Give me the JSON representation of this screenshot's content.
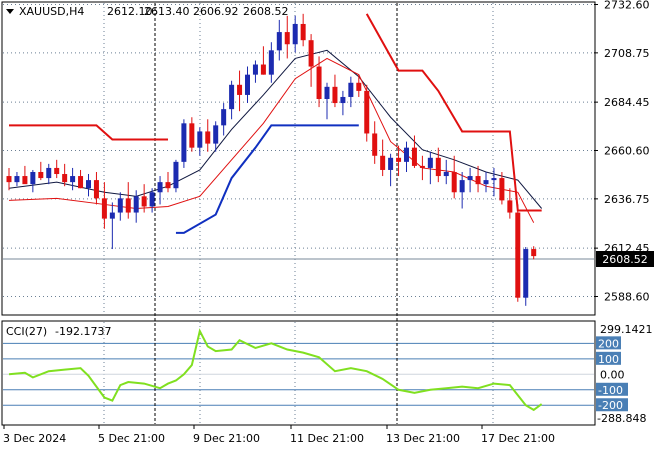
{
  "main": {
    "symbol": "XAUUSD,H4",
    "ohlc": [
      "2612.10",
      "2613.40",
      "2606.92",
      "2608.52"
    ],
    "price_ticks": [
      "2732.60",
      "2708.75",
      "2684.45",
      "2660.60",
      "2636.75",
      "2612.45",
      "2588.60"
    ],
    "current_price": "2608.52"
  },
  "cci": {
    "label": "CCI(27)",
    "value": "-192.1737",
    "axis_top": "299.1421",
    "axis_bottom": "-288.848",
    "level_labels": [
      "200",
      "100",
      "0.00",
      "-100",
      "-200"
    ]
  },
  "time_labels": [
    "3 Dec 2024",
    "5 Dec 21:00",
    "9 Dec 21:00",
    "11 Dec 21:00",
    "13 Dec 21:00",
    "17 Dec 21:00"
  ],
  "colors": {
    "bull": "#1c2bb0",
    "bear": "#e01010",
    "envelope_red": "#e01010",
    "envelope_blue": "#1030c0",
    "cci_line": "#80e020",
    "level_fill": "#4a7fb5",
    "grid": "#6b7f94"
  },
  "chart_data": {
    "type": "candlestick",
    "symbol": "XAUUSD",
    "timeframe": "H4",
    "y_range": [
      2576,
      2738
    ],
    "candles": [
      [
        2648,
        2652,
        2641,
        2645
      ],
      [
        2645,
        2650,
        2643,
        2648
      ],
      [
        2648,
        2653,
        2645,
        2644
      ],
      [
        2644,
        2651,
        2640,
        2650
      ],
      [
        2650,
        2655,
        2646,
        2647
      ],
      [
        2647,
        2654,
        2644,
        2652
      ],
      [
        2652,
        2656,
        2647,
        2649
      ],
      [
        2649,
        2654,
        2643,
        2645
      ],
      [
        2645,
        2652,
        2641,
        2648
      ],
      [
        2648,
        2651,
        2642,
        2642
      ],
      [
        2642,
        2649,
        2638,
        2646
      ],
      [
        2646,
        2650,
        2634,
        2637
      ],
      [
        2637,
        2645,
        2622,
        2627
      ],
      [
        2627,
        2635,
        2612,
        2630
      ],
      [
        2630,
        2640,
        2626,
        2637
      ],
      [
        2637,
        2645,
        2627,
        2630
      ],
      [
        2630,
        2641,
        2625,
        2638
      ],
      [
        2638,
        2644,
        2630,
        2633
      ],
      [
        2633,
        2642,
        2630,
        2640
      ],
      [
        2640,
        2648,
        2634,
        2645
      ],
      [
        2645,
        2650,
        2640,
        2642
      ],
      [
        2642,
        2656,
        2640,
        2655
      ],
      [
        2655,
        2676,
        2652,
        2674
      ],
      [
        2674,
        2677,
        2660,
        2662
      ],
      [
        2662,
        2672,
        2658,
        2670
      ],
      [
        2670,
        2676,
        2660,
        2664
      ],
      [
        2664,
        2675,
        2660,
        2673
      ],
      [
        2673,
        2684,
        2668,
        2681
      ],
      [
        2681,
        2695,
        2676,
        2693
      ],
      [
        2693,
        2700,
        2680,
        2688
      ],
      [
        2688,
        2702,
        2684,
        2698
      ],
      [
        2698,
        2705,
        2694,
        2703
      ],
      [
        2703,
        2712,
        2698,
        2698
      ],
      [
        2698,
        2714,
        2694,
        2710
      ],
      [
        2710,
        2725,
        2705,
        2719
      ],
      [
        2719,
        2727,
        2706,
        2713
      ],
      [
        2713,
        2727,
        2709,
        2723
      ],
      [
        2723,
        2728,
        2712,
        2715
      ],
      [
        2715,
        2718,
        2692,
        2702
      ],
      [
        2702,
        2707,
        2682,
        2686
      ],
      [
        2686,
        2694,
        2676,
        2692
      ],
      [
        2692,
        2698,
        2682,
        2684
      ],
      [
        2684,
        2690,
        2678,
        2687
      ],
      [
        2687,
        2697,
        2682,
        2694
      ],
      [
        2694,
        2698,
        2687,
        2690
      ],
      [
        2690,
        2693,
        2665,
        2669
      ],
      [
        2669,
        2675,
        2654,
        2658
      ],
      [
        2658,
        2666,
        2648,
        2651
      ],
      [
        2651,
        2659,
        2643,
        2657
      ],
      [
        2657,
        2663,
        2648,
        2655
      ],
      [
        2655,
        2665,
        2650,
        2662
      ],
      [
        2662,
        2668,
        2652,
        2653
      ],
      [
        2653,
        2658,
        2646,
        2652
      ],
      [
        2652,
        2660,
        2644,
        2657
      ],
      [
        2657,
        2662,
        2645,
        2648
      ],
      [
        2648,
        2656,
        2644,
        2650
      ],
      [
        2650,
        2658,
        2637,
        2640
      ],
      [
        2640,
        2650,
        2632,
        2646
      ],
      [
        2646,
        2652,
        2640,
        2648
      ],
      [
        2648,
        2653,
        2640,
        2644
      ],
      [
        2644,
        2650,
        2640,
        2646
      ],
      [
        2646,
        2652,
        2638,
        2647
      ],
      [
        2647,
        2650,
        2634,
        2636
      ],
      [
        2636,
        2642,
        2627,
        2630
      ],
      [
        2630,
        2634,
        2586,
        2588
      ],
      [
        2588,
        2613,
        2584,
        2612
      ],
      [
        2612,
        2613.4,
        2606.92,
        2608.52
      ]
    ],
    "envelope_lines": [
      [
        [
          0,
          2642
        ],
        [
          6,
          2645
        ],
        [
          12,
          2640
        ],
        [
          16,
          2638
        ],
        [
          20,
          2643
        ],
        [
          24,
          2651
        ],
        [
          28,
          2671
        ],
        [
          32,
          2688
        ],
        [
          36,
          2706
        ],
        [
          40,
          2710
        ],
        [
          44,
          2697
        ],
        [
          48,
          2677
        ],
        [
          52,
          2661
        ],
        [
          56,
          2656
        ],
        [
          60,
          2650
        ],
        [
          64,
          2646
        ],
        [
          67,
          2632
        ]
      ],
      [
        [
          0,
          2636
        ],
        [
          6,
          2637
        ],
        [
          12,
          2634
        ],
        [
          16,
          2632
        ],
        [
          20,
          2633
        ],
        [
          24,
          2638
        ],
        [
          28,
          2656
        ],
        [
          32,
          2674
        ],
        [
          36,
          2696
        ],
        [
          40,
          2706
        ],
        [
          44,
          2698
        ],
        [
          48,
          2665
        ],
        [
          52,
          2652
        ],
        [
          56,
          2650
        ],
        [
          60,
          2643
        ],
        [
          64,
          2640
        ],
        [
          66,
          2625
        ]
      ]
    ],
    "stop_line_red": [
      [
        [
          0,
          2673
        ],
        [
          11,
          2673
        ],
        [
          13,
          2666
        ],
        [
          20,
          2666
        ]
      ],
      [
        [
          45,
          2728
        ],
        [
          49,
          2700
        ],
        [
          52,
          2700
        ],
        [
          54,
          2690
        ],
        [
          57,
          2670
        ],
        [
          63,
          2670
        ],
        [
          64,
          2631
        ],
        [
          67,
          2631
        ]
      ]
    ],
    "stop_line_blue": [
      [
        [
          21,
          2620
        ],
        [
          22,
          2620
        ],
        [
          26,
          2629
        ],
        [
          28,
          2647
        ],
        [
          31,
          2662
        ],
        [
          33,
          2673
        ],
        [
          44,
          2673
        ]
      ]
    ],
    "cci": {
      "label": "CCI(27)",
      "y_range": [
        -288.848,
        299.1421
      ],
      "levels": [
        200,
        100,
        0,
        -100,
        -200
      ],
      "values": [
        [
          0,
          0
        ],
        [
          2,
          10
        ],
        [
          3,
          -20
        ],
        [
          5,
          20
        ],
        [
          7,
          30
        ],
        [
          9,
          40
        ],
        [
          10,
          -10
        ],
        [
          12,
          -150
        ],
        [
          13,
          -170
        ],
        [
          14,
          -70
        ],
        [
          15,
          -50
        ],
        [
          17,
          -60
        ],
        [
          19,
          -90
        ],
        [
          20,
          -60
        ],
        [
          21,
          -40
        ],
        [
          22,
          0
        ],
        [
          23,
          60
        ],
        [
          24,
          280
        ],
        [
          25,
          180
        ],
        [
          26,
          150
        ],
        [
          28,
          160
        ],
        [
          29,
          220
        ],
        [
          31,
          170
        ],
        [
          33,
          200
        ],
        [
          35,
          160
        ],
        [
          37,
          140
        ],
        [
          39,
          110
        ],
        [
          41,
          20
        ],
        [
          43,
          40
        ],
        [
          45,
          20
        ],
        [
          47,
          -30
        ],
        [
          49,
          -100
        ],
        [
          51,
          -120
        ],
        [
          53,
          -100
        ],
        [
          55,
          -90
        ],
        [
          57,
          -80
        ],
        [
          59,
          -90
        ],
        [
          61,
          -60
        ],
        [
          63,
          -70
        ],
        [
          65,
          -200
        ],
        [
          66,
          -230
        ],
        [
          67,
          -192.1737
        ]
      ]
    }
  }
}
